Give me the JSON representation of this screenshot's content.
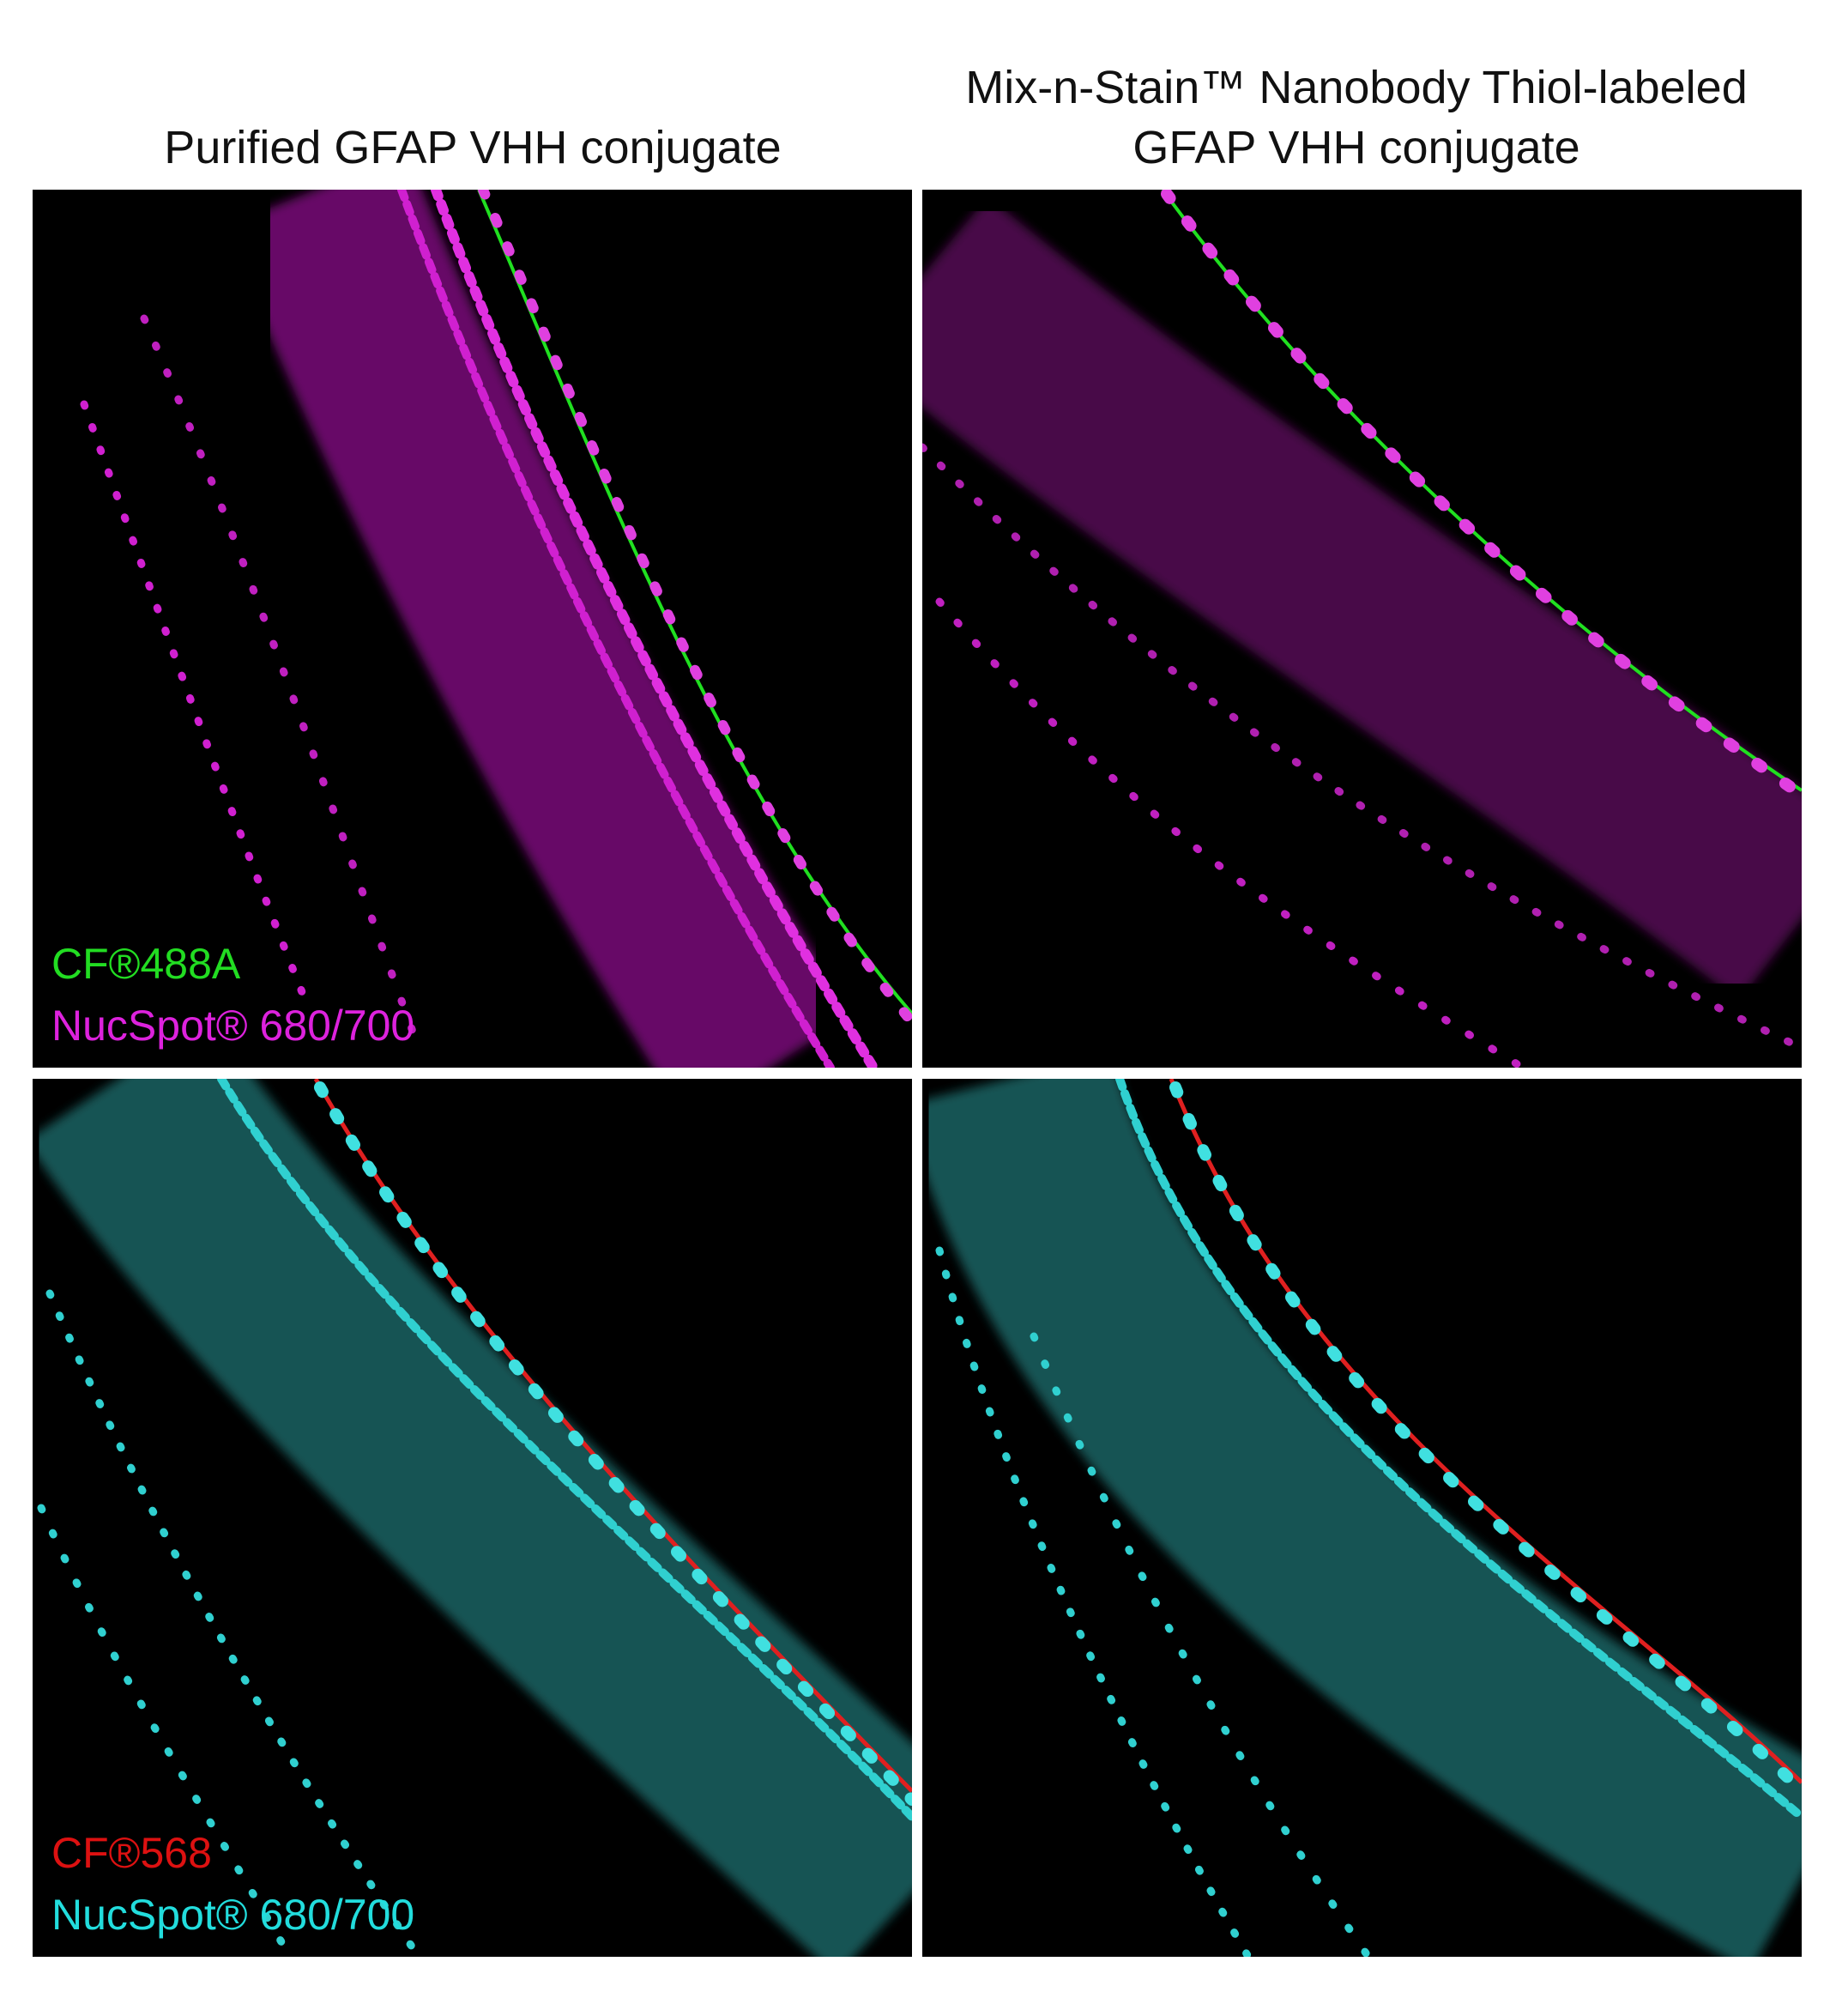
{
  "columns": [
    {
      "title_lines": [
        "Purified GFAP VHH conjugate"
      ]
    },
    {
      "title_lines": [
        "Mix-n-Stain™ Nanobody Thiol-labeled",
        "GFAP VHH conjugate"
      ]
    }
  ],
  "rows": [
    {
      "legend": [
        "CF®488A",
        "NucSpot® 680/700"
      ]
    },
    {
      "legend": [
        "CF®568",
        "NucSpot® 680/700"
      ]
    }
  ]
}
